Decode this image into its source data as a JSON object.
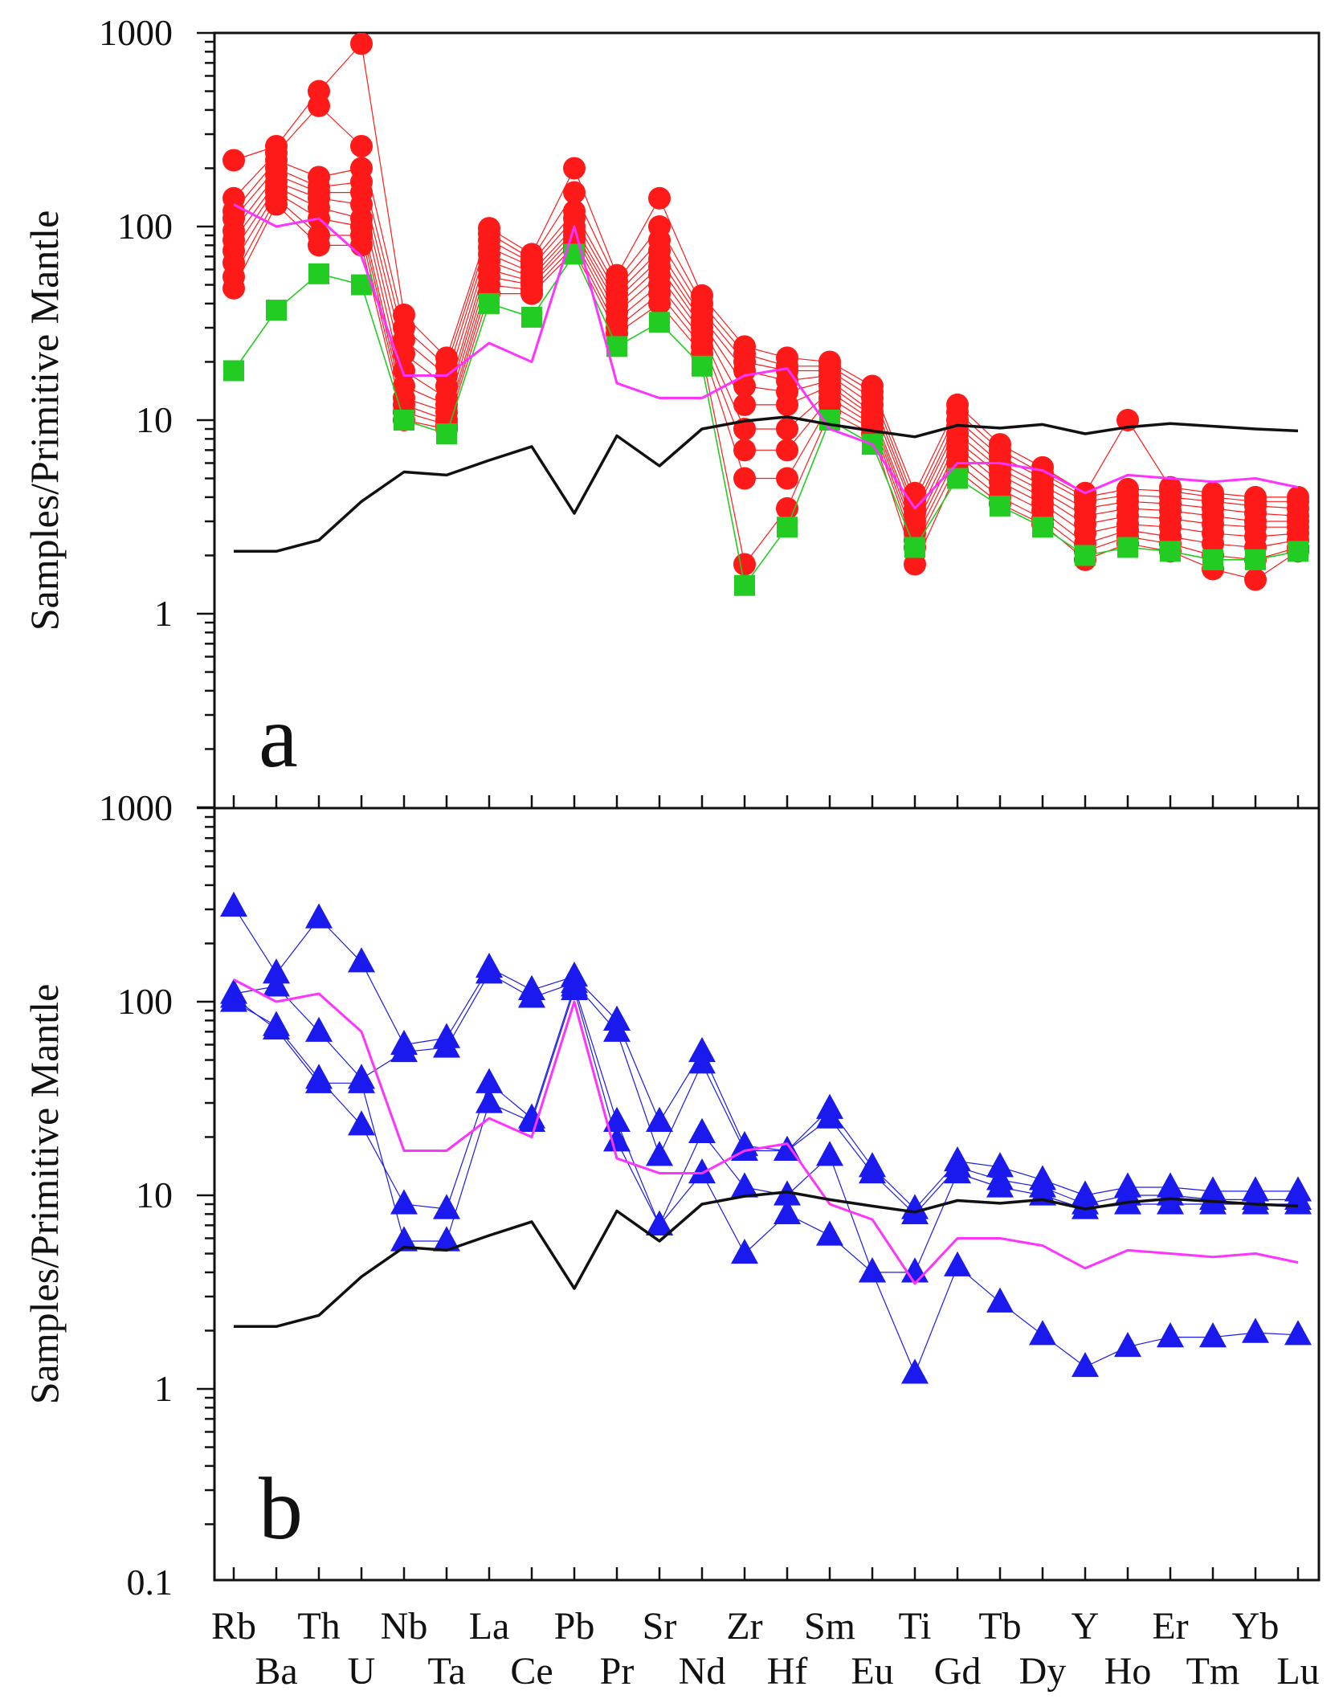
{
  "chart_data": [
    {
      "type": "line",
      "panel_label": "a",
      "y_scale": "log",
      "ylabel": "Samples/Primitive Mantle",
      "ylim": [
        0.1,
        1000
      ],
      "y_tick_labels": [
        "1000",
        "100",
        "10",
        "1"
      ],
      "categories": [
        "Rb",
        "Ba",
        "Th",
        "U",
        "Nb",
        "Ta",
        "La",
        "Ce",
        "Pb",
        "Pr",
        "Sr",
        "Nd",
        "Zr",
        "Hf",
        "Sm",
        "Eu",
        "Ti",
        "Gd",
        "Tb",
        "Dy",
        "Y",
        "Ho",
        "Er",
        "Tm",
        "Yb",
        "Lu"
      ],
      "colors": {
        "red": "#ff1a1a",
        "green": "#22cc22",
        "magenta": "#ff33ff",
        "black": "#111111"
      },
      "series": [
        {
          "name": "red samples 1",
          "style": "red-circle",
          "values": [
            220,
            260,
            500,
            880,
            35,
            21,
            98,
            72,
            200,
            56,
            140,
            44,
            24,
            21,
            20,
            15,
            4.2,
            12,
            7.5,
            5.7,
            4.2,
            10,
            4.5,
            4.2,
            4.0,
            4.0
          ]
        },
        {
          "name": "red samples 2",
          "style": "red-circle",
          "values": [
            140,
            240,
            420,
            260,
            30,
            19,
            92,
            68,
            150,
            52,
            100,
            40,
            22,
            19,
            19,
            14,
            3.8,
            11,
            7.0,
            5.3,
            4.0,
            4.4,
            4.3,
            4.0,
            3.8,
            3.8
          ]
        },
        {
          "name": "red samples 3",
          "style": "red-circle",
          "values": [
            120,
            220,
            180,
            200,
            26,
            17,
            85,
            65,
            120,
            48,
            85,
            37,
            20,
            18,
            18,
            13,
            3.5,
            10,
            6.5,
            5.0,
            3.8,
            4.1,
            4.0,
            3.8,
            3.6,
            3.5
          ]
        },
        {
          "name": "red samples 4",
          "style": "red-circle",
          "values": [
            110,
            200,
            160,
            170,
            22,
            15,
            78,
            62,
            110,
            45,
            75,
            34,
            18,
            16,
            17,
            12,
            3.3,
            9.3,
            6.0,
            4.6,
            3.5,
            3.8,
            3.7,
            3.5,
            3.3,
            3.2
          ]
        },
        {
          "name": "red samples 5",
          "style": "red-circle",
          "values": [
            95,
            185,
            150,
            150,
            18,
            13,
            72,
            58,
            100,
            42,
            68,
            32,
            15,
            14,
            16,
            11,
            3.0,
            8.5,
            5.6,
            4.3,
            3.2,
            3.5,
            3.4,
            3.2,
            3.0,
            3.0
          ]
        },
        {
          "name": "red samples 6",
          "style": "red-circle",
          "values": [
            85,
            170,
            140,
            130,
            15,
            12,
            66,
            55,
            95,
            39,
            62,
            30,
            12,
            12,
            15,
            10.5,
            2.8,
            7.8,
            5.2,
            4.0,
            2.9,
            3.2,
            3.1,
            2.9,
            2.8,
            2.8
          ]
        },
        {
          "name": "red samples 7",
          "style": "red-circle",
          "values": [
            75,
            160,
            125,
            110,
            13,
            11,
            60,
            52,
            90,
            36,
            56,
            28,
            9,
            9,
            14,
            10,
            2.6,
            7.2,
            4.8,
            3.7,
            2.6,
            2.9,
            2.8,
            2.6,
            2.5,
            2.6
          ]
        },
        {
          "name": "red samples 8",
          "style": "red-circle",
          "values": [
            65,
            150,
            110,
            100,
            12,
            10,
            55,
            50,
            85,
            33,
            50,
            26,
            7,
            7,
            13,
            9.5,
            2.4,
            6.6,
            4.4,
            3.4,
            2.3,
            2.7,
            2.5,
            2.3,
            2.2,
            2.4
          ]
        },
        {
          "name": "red samples 9",
          "style": "red-circle",
          "values": [
            55,
            140,
            90,
            90,
            11,
            9.5,
            50,
            47,
            80,
            30,
            45,
            24,
            5,
            5,
            12,
            9,
            2.2,
            6.0,
            4.0,
            3.1,
            2.1,
            2.5,
            2.3,
            2.0,
            1.9,
            2.2
          ]
        },
        {
          "name": "red samples 10",
          "style": "red-circle",
          "values": [
            48,
            130,
            80,
            80,
            10,
            9,
            45,
            45,
            75,
            28,
            40,
            22,
            1.8,
            3.5,
            11,
            8.5,
            1.8,
            5.5,
            3.7,
            2.9,
            1.9,
            2.3,
            2.1,
            1.7,
            1.5,
            2.1
          ]
        },
        {
          "name": "green samples",
          "style": "green-square",
          "values": [
            18,
            37,
            57,
            50,
            10,
            8.5,
            40,
            34,
            72,
            24,
            32,
            19,
            1.4,
            2.8,
            10,
            7.5,
            2.2,
            5.0,
            3.6,
            2.8,
            2.0,
            2.2,
            2.1,
            1.9,
            1.9,
            2.1
          ]
        },
        {
          "name": "magenta reference",
          "style": "magenta-line",
          "values": [
            130,
            100,
            110,
            70,
            17,
            17,
            25,
            20,
            100,
            15.5,
            13,
            13,
            17,
            18.5,
            9,
            7.5,
            3.5,
            6,
            6,
            5.5,
            4.2,
            5.2,
            5,
            4.8,
            5,
            4.5
          ]
        },
        {
          "name": "black reference",
          "style": "black-line",
          "values": [
            2.1,
            2.1,
            2.4,
            3.8,
            5.4,
            5.2,
            6.2,
            7.3,
            3.3,
            8.3,
            5.8,
            9.0,
            9.9,
            10.4,
            9.5,
            8.8,
            8.2,
            9.4,
            9.1,
            9.5,
            8.5,
            9.2,
            9.6,
            9.3,
            9.0,
            8.8
          ]
        }
      ]
    },
    {
      "type": "line",
      "panel_label": "b",
      "y_scale": "log",
      "ylabel": "Samples/Primitive Mantle",
      "ylim": [
        0.1,
        1000
      ],
      "y_tick_labels": [
        "1000",
        "100",
        "10",
        "1",
        "0.1"
      ],
      "categories": [
        "Rb",
        "Ba",
        "Th",
        "U",
        "Nb",
        "Ta",
        "La",
        "Ce",
        "Pb",
        "Pr",
        "Sr",
        "Nd",
        "Zr",
        "Hf",
        "Sm",
        "Eu",
        "Ti",
        "Gd",
        "Tb",
        "Dy",
        "Y",
        "Ho",
        "Er",
        "Tm",
        "Yb",
        "Lu"
      ],
      "x_label_row1": [
        "Rb",
        "Th",
        "Nb",
        "La",
        "Pb",
        "Sr",
        "Zr",
        "Sm",
        "Ti",
        "Tb",
        "Y",
        "Er",
        "Yb"
      ],
      "x_label_row2": [
        "Ba",
        "U",
        "Ta",
        "Ce",
        "Pr",
        "Nd",
        "Hf",
        "Eu",
        "Gd",
        "Dy",
        "Ho",
        "Tm",
        "Lu"
      ],
      "colors": {
        "blue": "#1a1aee",
        "magenta": "#ff33ff",
        "black": "#111111"
      },
      "series": [
        {
          "name": "blue sample 1",
          "style": "blue-triangle",
          "values": [
            310,
            140,
            270,
            160,
            60,
            65,
            150,
            115,
            135,
            80,
            24,
            55,
            18,
            17,
            28,
            14,
            8.5,
            15,
            14,
            12,
            10,
            11,
            11,
            10.5,
            10.5,
            10.5
          ]
        },
        {
          "name": "blue sample 2",
          "style": "blue-triangle",
          "values": [
            110,
            120,
            70,
            40,
            55,
            58,
            140,
            105,
            125,
            70,
            16,
            48,
            17,
            17,
            25,
            13,
            8,
            14,
            12,
            11,
            9,
            10,
            10,
            9.5,
            9.5,
            9.5
          ]
        },
        {
          "name": "blue sample 3",
          "style": "blue-triangle",
          "values": [
            100,
            75,
            40,
            23,
            9,
            8.5,
            38,
            25,
            120,
            24,
            7,
            21,
            11,
            10,
            16,
            4,
            4,
            13,
            11,
            10,
            8.5,
            9,
            9,
            9,
            9,
            9
          ]
        },
        {
          "name": "blue sample 4",
          "style": "blue-triangle",
          "values": [
            105,
            72,
            38,
            38,
            5.8,
            5.8,
            30,
            24,
            115,
            19,
            7,
            13,
            5,
            8,
            6.2,
            4,
            1.2,
            4.3,
            2.8,
            1.9,
            1.3,
            1.65,
            1.85,
            1.85,
            1.95,
            1.9
          ]
        },
        {
          "name": "magenta reference",
          "style": "magenta-line",
          "values": [
            130,
            100,
            110,
            70,
            17,
            17,
            25,
            20,
            100,
            15.5,
            13,
            13,
            17,
            18.5,
            9,
            7.5,
            3.5,
            6,
            6,
            5.5,
            4.2,
            5.2,
            5,
            4.8,
            5,
            4.5
          ]
        },
        {
          "name": "black reference",
          "style": "black-line",
          "values": [
            2.1,
            2.1,
            2.4,
            3.8,
            5.4,
            5.2,
            6.2,
            7.3,
            3.3,
            8.3,
            5.8,
            9.0,
            9.9,
            10.4,
            9.5,
            8.8,
            8.2,
            9.4,
            9.1,
            9.5,
            8.5,
            9.2,
            9.6,
            9.3,
            9.0,
            8.8
          ]
        }
      ]
    }
  ]
}
